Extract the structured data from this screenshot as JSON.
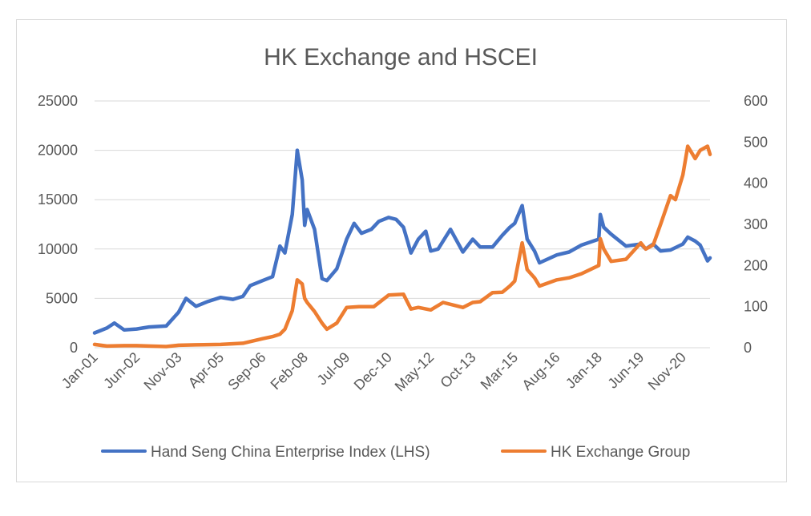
{
  "chart_data": {
    "type": "line",
    "title": "HK Exchange and HSCEI",
    "x_tick_labels": [
      "Jan-01",
      "Jun-02",
      "Nov-03",
      "Apr-05",
      "Sep-06",
      "Feb-08",
      "Jul-09",
      "Dec-10",
      "May-12",
      "Oct-13",
      "Mar-15",
      "Aug-16",
      "Jan-18",
      "Jun-19",
      "Nov-20"
    ],
    "y_left": {
      "range": [
        0,
        25000
      ],
      "ticks": [
        "0",
        "5000",
        "10000",
        "15000",
        "20000",
        "25000"
      ]
    },
    "y_right": {
      "range": [
        0,
        600
      ],
      "ticks": [
        "0",
        "100",
        "200",
        "300",
        "400",
        "500",
        "600"
      ]
    },
    "grid": true,
    "legend_position": "bottom",
    "series": [
      {
        "name": "Hand Seng China Enterprise Index (LHS)",
        "axis": "left",
        "color": "#4472c4",
        "points": [
          [
            "Jan-01",
            1500
          ],
          [
            "Jun-01",
            2000
          ],
          [
            "Sep-01",
            2500
          ],
          [
            "Jan-02",
            1800
          ],
          [
            "Jun-02",
            1900
          ],
          [
            "Nov-02",
            2100
          ],
          [
            "Jun-03",
            2200
          ],
          [
            "Nov-03",
            3600
          ],
          [
            "Feb-04",
            5000
          ],
          [
            "Jun-04",
            4200
          ],
          [
            "Nov-04",
            4700
          ],
          [
            "Apr-05",
            5100
          ],
          [
            "Sep-05",
            4900
          ],
          [
            "Jan-06",
            5200
          ],
          [
            "Apr-06",
            6300
          ],
          [
            "Sep-06",
            6800
          ],
          [
            "Jan-07",
            7200
          ],
          [
            "Apr-07",
            10300
          ],
          [
            "Jun-07",
            9600
          ],
          [
            "Sep-07",
            13500
          ],
          [
            "Nov-07",
            20000
          ],
          [
            "Jan-08",
            17000
          ],
          [
            "Feb-08",
            12400
          ],
          [
            "Mar-08",
            14000
          ],
          [
            "Jun-08",
            12000
          ],
          [
            "Sep-08",
            7000
          ],
          [
            "Nov-08",
            6800
          ],
          [
            "Mar-09",
            8000
          ],
          [
            "Jul-09",
            11000
          ],
          [
            "Oct-09",
            12600
          ],
          [
            "Jan-10",
            11600
          ],
          [
            "May-10",
            12000
          ],
          [
            "Aug-10",
            12800
          ],
          [
            "Dec-10",
            13200
          ],
          [
            "Mar-11",
            13000
          ],
          [
            "Jun-11",
            12200
          ],
          [
            "Sep-11",
            9600
          ],
          [
            "Dec-11",
            11000
          ],
          [
            "Mar-12",
            11800
          ],
          [
            "May-12",
            9800
          ],
          [
            "Aug-12",
            10000
          ],
          [
            "Jan-13",
            12000
          ],
          [
            "Jun-13",
            9700
          ],
          [
            "Oct-13",
            11000
          ],
          [
            "Jan-14",
            10200
          ],
          [
            "Jun-14",
            10200
          ],
          [
            "Oct-14",
            11400
          ],
          [
            "Jan-15",
            12200
          ],
          [
            "Mar-15",
            12600
          ],
          [
            "Jun-15",
            14400
          ],
          [
            "Aug-15",
            11000
          ],
          [
            "Nov-15",
            9800
          ],
          [
            "Jan-16",
            8600
          ],
          [
            "Aug-16",
            9400
          ],
          [
            "Jan-17",
            9700
          ],
          [
            "Jun-17",
            10400
          ],
          [
            "Jan-18",
            11000
          ],
          [
            "Jan-18b",
            13500
          ],
          [
            "Mar-18",
            12200
          ],
          [
            "Jun-18",
            11500
          ],
          [
            "Dec-18",
            10300
          ],
          [
            "Jun-19",
            10500
          ],
          [
            "Aug-19",
            10000
          ],
          [
            "Nov-19",
            10500
          ],
          [
            "Feb-20",
            9800
          ],
          [
            "Jun-20",
            9900
          ],
          [
            "Nov-20",
            10500
          ],
          [
            "Jan-21",
            11200
          ],
          [
            "Apr-21",
            10800
          ],
          [
            "Jun-21",
            10400
          ],
          [
            "Sep-21",
            8800
          ],
          [
            "Oct-21",
            9100
          ]
        ]
      },
      {
        "name": "HK Exchange Group",
        "axis": "right",
        "color": "#ed7d31",
        "points": [
          [
            "Jan-01",
            8
          ],
          [
            "Jun-01",
            4
          ],
          [
            "Jan-02",
            5
          ],
          [
            "Jun-02",
            5
          ],
          [
            "Nov-02",
            4
          ],
          [
            "Jun-03",
            3
          ],
          [
            "Nov-03",
            6
          ],
          [
            "Jun-04",
            7
          ],
          [
            "Apr-05",
            8
          ],
          [
            "Jan-06",
            11
          ],
          [
            "Sep-06",
            22
          ],
          [
            "Jan-07",
            27
          ],
          [
            "Apr-07",
            33
          ],
          [
            "Jun-07",
            45
          ],
          [
            "Sep-07",
            90
          ],
          [
            "Nov-07",
            165
          ],
          [
            "Jan-08",
            155
          ],
          [
            "Feb-08",
            120
          ],
          [
            "Mar-08",
            110
          ],
          [
            "Jun-08",
            88
          ],
          [
            "Sep-08",
            60
          ],
          [
            "Nov-08",
            45
          ],
          [
            "Mar-09",
            60
          ],
          [
            "Jul-09",
            98
          ],
          [
            "Dec-09",
            100
          ],
          [
            "Jun-10",
            100
          ],
          [
            "Dec-10",
            128
          ],
          [
            "Jun-11",
            130
          ],
          [
            "Sep-11",
            94
          ],
          [
            "Dec-11",
            98
          ],
          [
            "May-12",
            92
          ],
          [
            "Oct-12",
            110
          ],
          [
            "Jun-13",
            98
          ],
          [
            "Oct-13",
            110
          ],
          [
            "Jan-14",
            112
          ],
          [
            "Jun-14",
            134
          ],
          [
            "Oct-14",
            135
          ],
          [
            "Jan-15",
            150
          ],
          [
            "Mar-15",
            162
          ],
          [
            "Jun-15",
            255
          ],
          [
            "Aug-15",
            190
          ],
          [
            "Nov-15",
            170
          ],
          [
            "Jan-16",
            150
          ],
          [
            "Aug-16",
            165
          ],
          [
            "Jan-17",
            170
          ],
          [
            "Jun-17",
            180
          ],
          [
            "Jan-18",
            200
          ],
          [
            "Jan-18b",
            265
          ],
          [
            "Mar-18",
            240
          ],
          [
            "Jun-18",
            210
          ],
          [
            "Dec-18",
            215
          ],
          [
            "Jun-19",
            255
          ],
          [
            "Aug-19",
            240
          ],
          [
            "Nov-19",
            250
          ],
          [
            "Feb-20",
            300
          ],
          [
            "Jun-20",
            370
          ],
          [
            "Aug-20",
            360
          ],
          [
            "Nov-20",
            420
          ],
          [
            "Jan-21",
            490
          ],
          [
            "Apr-21",
            460
          ],
          [
            "Jun-21",
            480
          ],
          [
            "Sep-21",
            490
          ],
          [
            "Oct-21",
            470
          ]
        ]
      }
    ]
  }
}
